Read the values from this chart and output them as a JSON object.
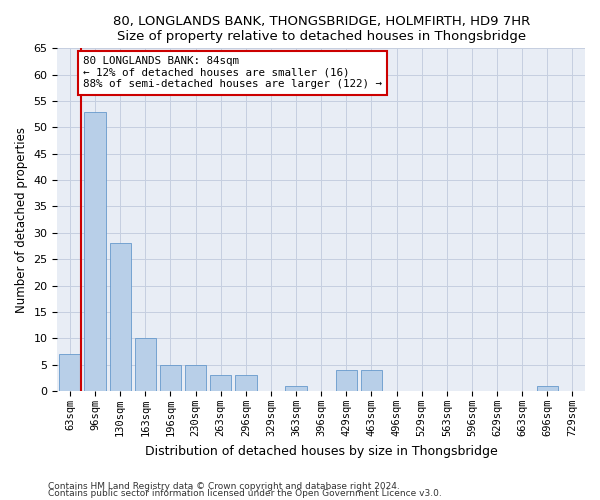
{
  "title": "80, LONGLANDS BANK, THONGSBRIDGE, HOLMFIRTH, HD9 7HR",
  "subtitle": "Size of property relative to detached houses in Thongsbridge",
  "xlabel": "Distribution of detached houses by size in Thongsbridge",
  "ylabel": "Number of detached properties",
  "footnote1": "Contains HM Land Registry data © Crown copyright and database right 2024.",
  "footnote2": "Contains public sector information licensed under the Open Government Licence v3.0.",
  "bins": [
    "63sqm",
    "96sqm",
    "130sqm",
    "163sqm",
    "196sqm",
    "230sqm",
    "263sqm",
    "296sqm",
    "329sqm",
    "363sqm",
    "396sqm",
    "429sqm",
    "463sqm",
    "496sqm",
    "529sqm",
    "563sqm",
    "596sqm",
    "629sqm",
    "663sqm",
    "696sqm",
    "729sqm"
  ],
  "values": [
    7,
    53,
    28,
    10,
    5,
    5,
    3,
    3,
    0,
    1,
    0,
    4,
    4,
    0,
    0,
    0,
    0,
    0,
    0,
    1,
    0
  ],
  "bar_color": "#b8cfe8",
  "bar_edge_color": "#6699cc",
  "background_color": "#e8edf5",
  "property_label": "80 LONGLANDS BANK: 84sqm",
  "pct_smaller": "12% of detached houses are smaller (16)",
  "pct_larger": "88% of semi-detached houses are larger (122)",
  "annotation_box_color": "#ffffff",
  "annotation_box_edge": "#cc0000",
  "red_line_color": "#cc0000",
  "ylim": [
    0,
    65
  ],
  "yticks": [
    0,
    5,
    10,
    15,
    20,
    25,
    30,
    35,
    40,
    45,
    50,
    55,
    60,
    65
  ],
  "figsize": [
    6.0,
    5.0
  ],
  "dpi": 100
}
